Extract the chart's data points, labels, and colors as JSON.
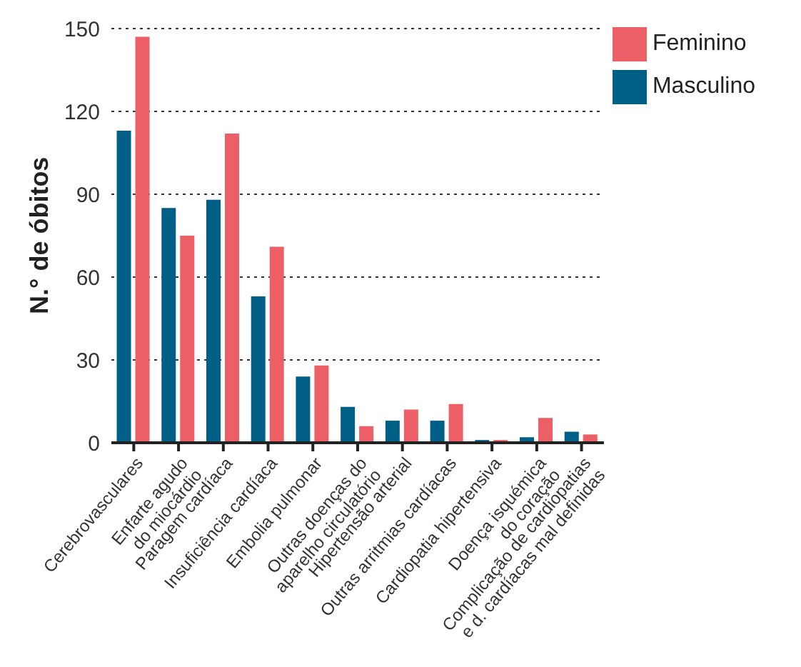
{
  "chart_data": {
    "type": "bar",
    "ylabel": "N.° de óbitos",
    "categories": [
      "Cerebrovasculares",
      "Enfarte agudo\ndo miocárdio",
      "Paragem cardíaca",
      "Insuficiência cardíaca",
      "Embolia pulmonar",
      "Outras doenças do\naparelho circulatório",
      "Hipertensão arterial",
      "Outras arritmias cardíacas",
      "Cardiopatia hipertensiva",
      "Doença isquémica\ndo coração",
      "Complicação de cardiopatias\ne d. cardíacas mal definidas"
    ],
    "series": [
      {
        "name": "Masculino",
        "color": "#005f87",
        "values": [
          113,
          85,
          88,
          53,
          24,
          13,
          8,
          8,
          1,
          2,
          4
        ]
      },
      {
        "name": "Feminino",
        "color": "#ec5f67",
        "values": [
          147,
          75,
          112,
          71,
          28,
          6,
          12,
          14,
          1,
          9,
          3
        ]
      }
    ],
    "ylim": [
      0,
      150
    ],
    "yticks": [
      0,
      30,
      60,
      90,
      120,
      150
    ],
    "grid": "y",
    "legend": "top right"
  }
}
